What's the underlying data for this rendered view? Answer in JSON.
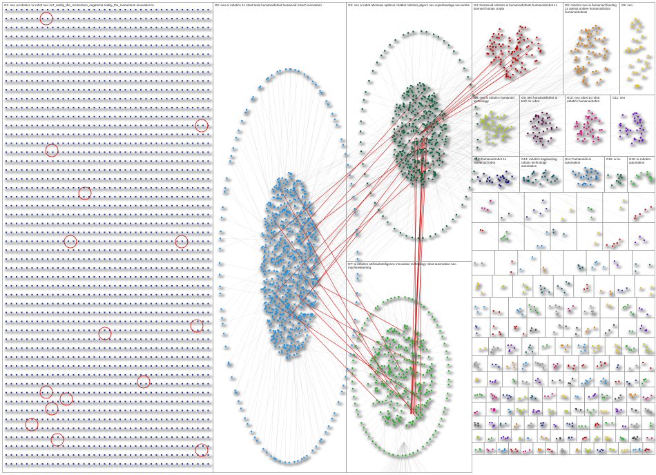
{
  "graph": {
    "edge_color": "#bdbdbd",
    "highlight_edge_color": "#cc0000",
    "groups": [
      {
        "id": "G1",
        "label": "G1: neo ai robotics 1x robot neo 1x7_reality_the_momentum_nagamma reality_the_momentum innovation tv",
        "color": "#1f2f8f"
      },
      {
        "id": "G2",
        "label": "G2: neo ai robotics 1x robot tesla humanoidrobot humanoid 1xtech innovation",
        "color": "#1e90e0"
      },
      {
        "id": "G3",
        "label": "G3: neo ai robot abcnews optimus chatbot robotics jalgorn neo superbowlage neo works",
        "color": "#0b5e3a"
      },
      {
        "id": "G4",
        "label": "G4: humanoid robotics ai humanoidrobots humanoidrobot 1x ainmust human crypto",
        "color": "#c00000"
      },
      {
        "id": "G5",
        "label": "G5: robotics neo ai humanoid funding 1x openai unitree humanoidrobot humanoidrobots",
        "color": "#e07800"
      },
      {
        "id": "G6",
        "label": "G6: neo",
        "color": "#f0c000"
      },
      {
        "id": "G7",
        "label": "G7: ai robotics artificialintelligence innovation technology robot automation neo machinelearning",
        "color": "#22aa22"
      },
      {
        "id": "G8",
        "label": "G8: neo ai robotics humanoid technology",
        "color": "#a8cc10"
      },
      {
        "id": "G9",
        "label": "G9: neo humanoidrobot ai tech 1x robot",
        "color": "#5a0a4a"
      },
      {
        "id": "G10",
        "label": "G10: neo robot 1x robot robotics humanoidrobot",
        "color": "#d0107a"
      },
      {
        "id": "G11",
        "label": "G11: neo",
        "color": "#6a10c0"
      },
      {
        "id": "G12",
        "label": "G12: humanoidrobot 1x humanoid robot",
        "color": "#101070"
      },
      {
        "id": "G13",
        "label": "G13: robotics engineering robotic technology automation",
        "color": "#0a5a6a"
      },
      {
        "id": "G14",
        "label": "G14: humanoids ai automation",
        "color": "#1070c0"
      },
      {
        "id": "G15",
        "label": "G15: ai 1x",
        "color": "#0a6a3a"
      },
      {
        "id": "G16",
        "label": "G16: ai robotics automation",
        "color": "#30c030"
      }
    ]
  }
}
